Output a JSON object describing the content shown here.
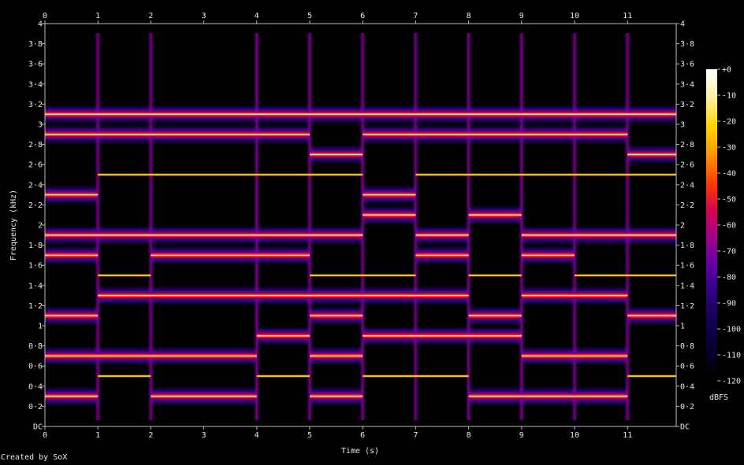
{
  "chart_data": {
    "type": "heatmap",
    "title": "",
    "xlabel": "Time (s)",
    "ylabel": "Frequency (kHz)",
    "xlim": [
      0,
      11.93
    ],
    "ylim": [
      0,
      4
    ],
    "x_ticks": [
      "0",
      "1",
      "2",
      "3",
      "4",
      "5",
      "6",
      "7",
      "8",
      "9",
      "10",
      "11"
    ],
    "y_ticks": [
      "DC",
      "0·2",
      "0·4",
      "0·6",
      "0·8",
      "1",
      "1·2",
      "1·4",
      "1·6",
      "1·8",
      "2",
      "2·2",
      "2·4",
      "2·6",
      "2·8",
      "3",
      "3·2",
      "3·4",
      "3·6",
      "3·8",
      "4"
    ],
    "colorbar": {
      "label": "dBFS",
      "ticks": [
        "+0",
        "-10",
        "-20",
        "-30",
        "-40",
        "-50",
        "-60",
        "-70",
        "-80",
        "-90",
        "-100",
        "-110",
        "-120"
      ],
      "colors": [
        "#ffffff",
        "#fff3a0",
        "#ffd400",
        "#ff9800",
        "#ff3d00",
        "#d7004e",
        "#9b008f",
        "#5a00a0",
        "#2a007a",
        "#120050",
        "#050028",
        "#000000"
      ]
    },
    "tones_khz": [
      {
        "freq": 0.3,
        "segments": [
          [
            0,
            1
          ],
          [
            2,
            4
          ],
          [
            5,
            6
          ],
          [
            8,
            11
          ]
        ],
        "intensity": "strong"
      },
      {
        "freq": 0.5,
        "segments": [
          [
            1,
            2
          ],
          [
            4,
            5
          ],
          [
            6,
            8
          ],
          [
            11,
            11.93
          ]
        ],
        "intensity": "faint"
      },
      {
        "freq": 0.7,
        "segments": [
          [
            0,
            4
          ],
          [
            5,
            6
          ],
          [
            9,
            11
          ]
        ],
        "intensity": "strong"
      },
      {
        "freq": 0.9,
        "segments": [
          [
            4,
            5
          ],
          [
            6,
            9
          ]
        ],
        "intensity": "strong"
      },
      {
        "freq": 1.1,
        "segments": [
          [
            0,
            1
          ],
          [
            5,
            6
          ],
          [
            8,
            9
          ],
          [
            11,
            11.93
          ]
        ],
        "intensity": "strong"
      },
      {
        "freq": 1.3,
        "segments": [
          [
            1,
            8
          ],
          [
            9,
            11
          ]
        ],
        "intensity": "strong"
      },
      {
        "freq": 1.5,
        "segments": [
          [
            1,
            2
          ],
          [
            5,
            7
          ],
          [
            8,
            9
          ],
          [
            10,
            11.93
          ]
        ],
        "intensity": "faint"
      },
      {
        "freq": 1.7,
        "segments": [
          [
            0,
            1
          ],
          [
            2,
            5
          ],
          [
            7,
            8
          ],
          [
            9,
            10
          ]
        ],
        "intensity": "strong"
      },
      {
        "freq": 1.9,
        "segments": [
          [
            0,
            6
          ],
          [
            7,
            8
          ],
          [
            9,
            11.93
          ]
        ],
        "intensity": "strong"
      },
      {
        "freq": 2.1,
        "segments": [
          [
            6,
            7
          ],
          [
            8,
            9
          ]
        ],
        "intensity": "strong"
      },
      {
        "freq": 2.3,
        "segments": [
          [
            0,
            1
          ],
          [
            6,
            7
          ]
        ],
        "intensity": "strong"
      },
      {
        "freq": 2.5,
        "segments": [
          [
            1,
            6
          ],
          [
            7,
            11.93
          ]
        ],
        "intensity": "faint"
      },
      {
        "freq": 2.7,
        "segments": [
          [
            5,
            6
          ],
          [
            11,
            11.93
          ]
        ],
        "intensity": "strong"
      },
      {
        "freq": 2.9,
        "segments": [
          [
            0,
            5
          ],
          [
            6,
            11
          ]
        ],
        "intensity": "strong"
      },
      {
        "freq": 3.1,
        "segments": [
          [
            0,
            11.93
          ]
        ],
        "intensity": "strong"
      }
    ],
    "transients_s": [
      1,
      2,
      4,
      5,
      6,
      7,
      8,
      9,
      10,
      11
    ]
  },
  "footer": {
    "text": "Created by SoX"
  }
}
